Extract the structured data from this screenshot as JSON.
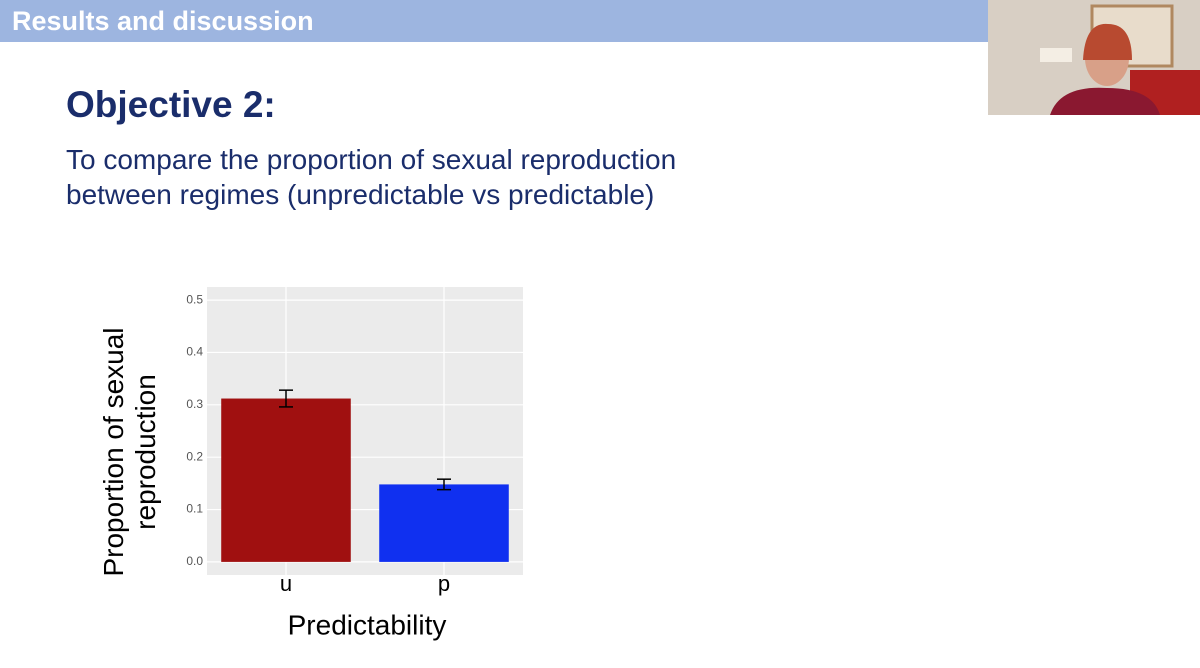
{
  "header": {
    "title": "Results and discussion"
  },
  "slide": {
    "heading": "Objective 2:",
    "text": "To compare the proportion of sexual reproduction between regimes (unpredictable vs predictable)"
  },
  "chart_data": {
    "type": "bar",
    "categories": [
      "u",
      "p"
    ],
    "values": [
      0.312,
      0.148
    ],
    "errors": [
      0.016,
      0.01
    ],
    "colors": [
      "#a01010",
      "#1030f0"
    ],
    "xlabel": "Predictability",
    "ylabel": "Proportion of sexual reproduction",
    "ylim": [
      -0.025,
      0.525
    ],
    "yticks": [
      {
        "value": 0,
        "label": "0.0"
      },
      0.1,
      0.2,
      0.3,
      0.4,
      0.5
    ],
    "grid": true
  }
}
